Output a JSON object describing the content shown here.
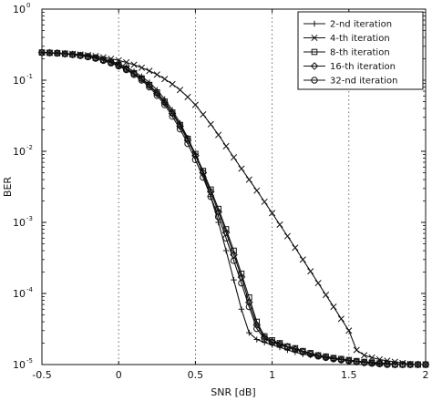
{
  "chart_data": {
    "type": "line",
    "title": "",
    "xlabel": "SNR [dB]",
    "ylabel": "BER",
    "xlim": [
      -0.5,
      2
    ],
    "ylim": [
      1e-05,
      1
    ],
    "yscale": "log",
    "grid": "x-dotted",
    "legend_position": "top-right",
    "xticks": [
      {
        "value": -0.5,
        "label": "-0.5"
      },
      {
        "value": 0,
        "label": "0"
      },
      {
        "value": 0.5,
        "label": "0.5"
      },
      {
        "value": 1,
        "label": "1"
      },
      {
        "value": 1.5,
        "label": "1.5"
      },
      {
        "value": 2,
        "label": "2"
      }
    ],
    "yticks": [
      {
        "value": 1,
        "exp": "0"
      },
      {
        "value": 0.1,
        "exp": "-1"
      },
      {
        "value": 0.01,
        "exp": "-2"
      },
      {
        "value": 0.001,
        "exp": "-3"
      },
      {
        "value": 0.0001,
        "exp": "-4"
      },
      {
        "value": 1e-05,
        "exp": "-5"
      }
    ],
    "series": [
      {
        "name": "2-nd iteration",
        "marker": "plus",
        "x": [
          -0.5,
          -0.45,
          -0.4,
          -0.35,
          -0.3,
          -0.25,
          -0.2,
          -0.15,
          -0.1,
          -0.05,
          0,
          0.05,
          0.1,
          0.15,
          0.2,
          0.25,
          0.3,
          0.35,
          0.4,
          0.45,
          0.5,
          0.55,
          0.6,
          0.65,
          0.7,
          0.75,
          0.8,
          0.85,
          0.9,
          0.95,
          1.0,
          1.05,
          1.1,
          1.15,
          1.2,
          1.25,
          1.3,
          1.35,
          1.4,
          1.45,
          1.5,
          1.55,
          1.6,
          1.65,
          1.7,
          1.75,
          1.8,
          1.85,
          1.9,
          1.95,
          2.0
        ],
        "y": [
          0.245,
          0.243,
          0.24,
          0.236,
          0.232,
          0.226,
          0.219,
          0.21,
          0.198,
          0.185,
          0.17,
          0.153,
          0.133,
          0.113,
          0.093,
          0.073,
          0.054,
          0.038,
          0.025,
          0.0155,
          0.009,
          0.0048,
          0.0023,
          0.001,
          0.0004,
          0.000155,
          6e-05,
          2.8e-05,
          2.25e-05,
          2.05e-05,
          1.9e-05,
          1.75e-05,
          1.6e-05,
          1.5e-05,
          1.4e-05,
          1.35e-05,
          1.3e-05,
          1.25e-05,
          1.2e-05,
          1.18e-05,
          1.15e-05,
          1.12e-05,
          1.1e-05,
          1.08e-05,
          1.06e-05,
          1.04e-05,
          1.02e-05,
          1e-05,
          1e-05,
          1e-05,
          1e-05
        ]
      },
      {
        "name": "4-th iteration",
        "marker": "cross",
        "x": [
          -0.5,
          -0.45,
          -0.4,
          -0.35,
          -0.3,
          -0.25,
          -0.2,
          -0.15,
          -0.1,
          -0.05,
          0,
          0.05,
          0.1,
          0.15,
          0.2,
          0.25,
          0.3,
          0.35,
          0.4,
          0.45,
          0.5,
          0.55,
          0.6,
          0.65,
          0.7,
          0.75,
          0.8,
          0.85,
          0.9,
          0.95,
          1.0,
          1.05,
          1.1,
          1.15,
          1.2,
          1.25,
          1.3,
          1.35,
          1.4,
          1.45,
          1.5,
          1.55,
          1.6,
          1.65,
          1.7,
          1.75,
          1.8,
          1.85,
          1.9,
          1.95,
          2.0
        ],
        "y": [
          0.245,
          0.243,
          0.241,
          0.238,
          0.234,
          0.23,
          0.225,
          0.218,
          0.21,
          0.2,
          0.19,
          0.178,
          0.165,
          0.15,
          0.135,
          0.12,
          0.104,
          0.088,
          0.073,
          0.058,
          0.045,
          0.033,
          0.024,
          0.017,
          0.0118,
          0.0082,
          0.0057,
          0.004,
          0.0028,
          0.00195,
          0.00135,
          0.00093,
          0.00064,
          0.00044,
          0.0003,
          0.000205,
          0.00014,
          9.55e-05,
          6.5e-05,
          4.4e-05,
          3e-05,
          1.6e-05,
          1.35e-05,
          1.25e-05,
          1.18e-05,
          1.13e-05,
          1.09e-05,
          1.05e-05,
          1.02e-05,
          1e-05,
          1e-05
        ]
      },
      {
        "name": "8-th iteration",
        "marker": "square",
        "x": [
          -0.5,
          -0.45,
          -0.4,
          -0.35,
          -0.3,
          -0.25,
          -0.2,
          -0.15,
          -0.1,
          -0.05,
          0,
          0.05,
          0.1,
          0.15,
          0.2,
          0.25,
          0.3,
          0.35,
          0.4,
          0.45,
          0.5,
          0.55,
          0.6,
          0.65,
          0.7,
          0.75,
          0.8,
          0.85,
          0.9,
          0.95,
          1.0,
          1.05,
          1.1,
          1.15,
          1.2,
          1.25,
          1.3,
          1.35,
          1.4,
          1.45,
          1.5,
          1.55,
          1.6,
          1.65,
          1.7,
          1.75,
          1.8,
          1.85,
          1.9,
          1.95,
          2.0
        ],
        "y": [
          0.245,
          0.243,
          0.24,
          0.235,
          0.23,
          0.224,
          0.216,
          0.206,
          0.194,
          0.18,
          0.164,
          0.146,
          0.126,
          0.106,
          0.086,
          0.067,
          0.05,
          0.035,
          0.0235,
          0.015,
          0.0092,
          0.0053,
          0.0029,
          0.00155,
          0.0008,
          0.0004,
          0.00019,
          8.8e-05,
          4e-05,
          2.5e-05,
          2.2e-05,
          2e-05,
          1.8e-05,
          1.7e-05,
          1.55e-05,
          1.45e-05,
          1.35e-05,
          1.3e-05,
          1.24e-05,
          1.2e-05,
          1.16e-05,
          1.12e-05,
          1.09e-05,
          1.06e-05,
          1.04e-05,
          1.02e-05,
          1e-05,
          1e-05,
          1e-05,
          1e-05,
          1e-05
        ]
      },
      {
        "name": "16-th iteration",
        "marker": "diamond",
        "x": [
          -0.5,
          -0.45,
          -0.4,
          -0.35,
          -0.3,
          -0.25,
          -0.2,
          -0.15,
          -0.1,
          -0.05,
          0,
          0.05,
          0.1,
          0.15,
          0.2,
          0.25,
          0.3,
          0.35,
          0.4,
          0.45,
          0.5,
          0.55,
          0.6,
          0.65,
          0.7,
          0.75,
          0.8,
          0.85,
          0.9,
          0.95,
          1.0,
          1.05,
          1.1,
          1.15,
          1.2,
          1.25,
          1.3,
          1.35,
          1.4,
          1.45,
          1.5,
          1.55,
          1.6,
          1.65,
          1.7,
          1.75,
          1.8,
          1.85,
          1.9,
          1.95,
          2.0
        ],
        "y": [
          0.245,
          0.243,
          0.24,
          0.235,
          0.23,
          0.223,
          0.215,
          0.205,
          0.192,
          0.178,
          0.162,
          0.144,
          0.124,
          0.104,
          0.084,
          0.065,
          0.048,
          0.034,
          0.0225,
          0.0143,
          0.0087,
          0.005,
          0.0027,
          0.0014,
          0.00072,
          0.00035,
          0.00017,
          7.5e-05,
          3.6e-05,
          2.4e-05,
          2.1e-05,
          1.95e-05,
          1.78e-05,
          1.65e-05,
          1.52e-05,
          1.42e-05,
          1.33e-05,
          1.27e-05,
          1.21e-05,
          1.17e-05,
          1.13e-05,
          1.1e-05,
          1.07e-05,
          1.05e-05,
          1.03e-05,
          1.01e-05,
          1e-05,
          1e-05,
          1e-05,
          1e-05,
          1e-05
        ]
      },
      {
        "name": "32-nd iteration",
        "marker": "circle",
        "x": [
          -0.5,
          -0.45,
          -0.4,
          -0.35,
          -0.3,
          -0.25,
          -0.2,
          -0.15,
          -0.1,
          -0.05,
          0,
          0.05,
          0.1,
          0.15,
          0.2,
          0.25,
          0.3,
          0.35,
          0.4,
          0.45,
          0.5,
          0.55,
          0.6,
          0.65,
          0.7,
          0.75,
          0.8,
          0.85,
          0.9,
          0.95,
          1.0,
          1.05,
          1.1,
          1.15,
          1.2,
          1.25,
          1.3,
          1.35,
          1.4,
          1.45,
          1.5,
          1.55,
          1.6,
          1.65,
          1.7,
          1.75,
          1.8,
          1.85,
          1.9,
          1.95,
          2.0
        ],
        "y": [
          0.245,
          0.243,
          0.24,
          0.235,
          0.229,
          0.222,
          0.213,
          0.202,
          0.189,
          0.174,
          0.158,
          0.14,
          0.12,
          0.1,
          0.08,
          0.061,
          0.045,
          0.031,
          0.0205,
          0.0128,
          0.0076,
          0.0043,
          0.0023,
          0.0012,
          0.0006,
          0.00029,
          0.00014,
          6.5e-05,
          3.2e-05,
          2.3e-05,
          2.05e-05,
          1.9e-05,
          1.75e-05,
          1.62e-05,
          1.5e-05,
          1.4e-05,
          1.31e-05,
          1.25e-05,
          1.2e-05,
          1.16e-05,
          1.12e-05,
          1.09e-05,
          1.06e-05,
          1.04e-05,
          1.02e-05,
          1e-05,
          1e-05,
          1e-05,
          1e-05,
          1e-05,
          1e-05
        ]
      }
    ]
  }
}
